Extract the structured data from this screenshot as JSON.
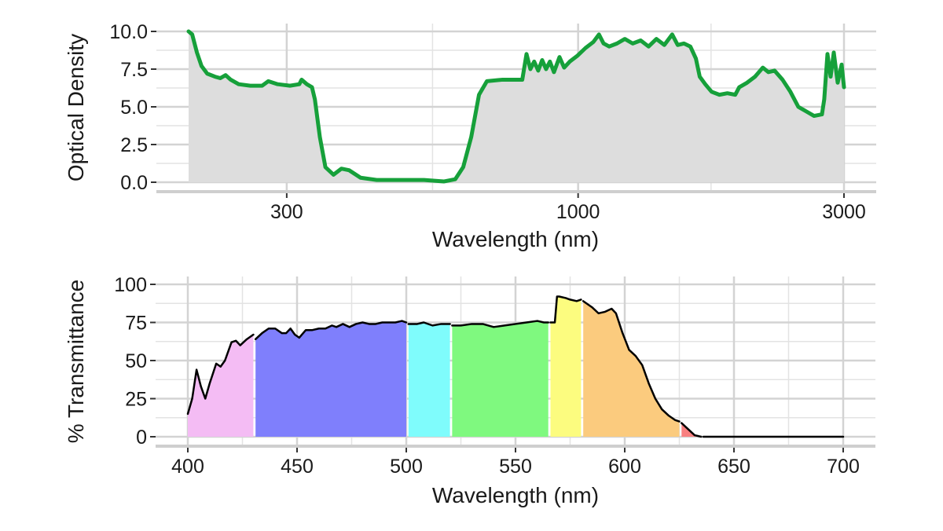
{
  "chart_data": [
    {
      "type": "area",
      "xlabel": "Wavelength (nm)",
      "ylabel": "Optical Density",
      "x_scale": "log10",
      "xlim": [
        200,
        3000
      ],
      "ylim": [
        0,
        10
      ],
      "x_ticks": [
        300,
        1000,
        3000
      ],
      "x_tick_labels": [
        "300",
        "1000",
        "3000"
      ],
      "x_minor_ticks": [
        548,
        1732
      ],
      "y_ticks": [
        0,
        2.5,
        5,
        7.5,
        10
      ],
      "y_tick_labels": [
        "0.0",
        "2.5",
        "5.0",
        "7.5",
        "10.0"
      ],
      "grid": true,
      "line_color": "#16a03a",
      "fill_color": "#dddddd",
      "x": [
        200,
        203,
        207,
        211,
        216,
        223,
        228,
        233,
        238,
        246,
        258,
        271,
        278,
        289,
        304,
        316,
        319,
        326,
        333,
        337,
        344,
        352,
        364,
        376,
        388,
        407,
        435,
        529,
        574,
        602,
        622,
        643,
        664,
        686,
        732,
        794,
        808,
        821,
        834,
        848,
        862,
        876,
        890,
        905,
        926,
        944,
        966,
        998,
        1031,
        1065,
        1090,
        1111,
        1137,
        1174,
        1213,
        1253,
        1295,
        1338,
        1382,
        1428,
        1475,
        1509,
        1549,
        1590,
        1627,
        1653,
        1691,
        1736,
        1793,
        1853,
        1914,
        1946,
        2010,
        2077,
        2145,
        2195,
        2252,
        2327,
        2404,
        2484,
        2566,
        2651,
        2739,
        2765,
        2802,
        2839,
        2876,
        2923,
        2971,
        3000
      ],
      "y": [
        10.0,
        9.8,
        8.6,
        7.7,
        7.2,
        7.0,
        6.9,
        7.1,
        6.8,
        6.5,
        6.4,
        6.4,
        6.7,
        6.5,
        6.4,
        6.5,
        6.8,
        6.5,
        6.3,
        5.5,
        3.0,
        1.0,
        0.5,
        0.9,
        0.8,
        0.3,
        0.15,
        0.15,
        0.05,
        0.2,
        1.0,
        3.0,
        5.8,
        6.7,
        6.8,
        6.8,
        8.5,
        7.5,
        8.0,
        7.4,
        8.1,
        7.5,
        8.0,
        7.3,
        8.3,
        7.6,
        8.0,
        8.4,
        8.9,
        9.3,
        9.8,
        9.2,
        9.0,
        9.2,
        9.5,
        9.2,
        9.4,
        9.0,
        9.5,
        9.1,
        9.8,
        9.1,
        9.2,
        9.0,
        8.2,
        7.0,
        6.5,
        6.0,
        5.8,
        5.9,
        5.8,
        6.3,
        6.6,
        7.0,
        7.6,
        7.3,
        7.4,
        6.8,
        6.0,
        5.0,
        4.7,
        4.4,
        4.5,
        5.5,
        8.5,
        7.0,
        8.6,
        6.6,
        7.8,
        6.3
      ]
    },
    {
      "type": "area",
      "xlabel": "Wavelength (nm)",
      "ylabel": "% Transmittance",
      "xlim": [
        400,
        700
      ],
      "ylim": [
        0,
        100
      ],
      "x_ticks": [
        400,
        450,
        500,
        550,
        600,
        650,
        700
      ],
      "x_tick_labels": [
        "400",
        "450",
        "500",
        "550",
        "600",
        "650",
        "700"
      ],
      "y_ticks": [
        0,
        25,
        50,
        75,
        100
      ],
      "y_tick_labels": [
        "0",
        "25",
        "50",
        "75",
        "100"
      ],
      "grid": true,
      "line_color": "#000000",
      "series": [
        {
          "color": "#f4bcf4",
          "x": [
            400,
            402,
            404,
            406,
            408,
            410,
            413,
            415,
            417,
            420,
            422,
            424,
            427,
            430
          ],
          "y": [
            15,
            25,
            44,
            33,
            25,
            35,
            48,
            46,
            50,
            62,
            63,
            60,
            64,
            67
          ]
        },
        {
          "color": "#7f7ffc",
          "x": [
            431,
            434,
            437,
            440,
            443,
            445,
            447,
            449,
            451,
            454,
            457,
            460,
            463,
            466,
            468,
            471,
            474,
            477,
            480,
            483,
            486,
            489,
            492,
            495,
            498,
            500
          ],
          "y": [
            64,
            68,
            71,
            71,
            68,
            68,
            71,
            67,
            65,
            70,
            70,
            71,
            71,
            73,
            72,
            74,
            72,
            74,
            75,
            74,
            74,
            75,
            75,
            75,
            76,
            75
          ]
        },
        {
          "color": "#7ffcfc",
          "x": [
            501,
            505,
            508,
            512,
            516,
            520
          ],
          "y": [
            74,
            74,
            75,
            73,
            74,
            74
          ]
        },
        {
          "color": "#7ff97f",
          "x": [
            521,
            525,
            530,
            535,
            540,
            545,
            550,
            555,
            560,
            563,
            565
          ],
          "y": [
            73,
            73,
            74,
            74,
            72,
            73,
            74,
            75,
            76,
            75,
            75
          ]
        },
        {
          "color": "#fcfc7f",
          "x": [
            566,
            568,
            569,
            570,
            573,
            575,
            578,
            580
          ],
          "y": [
            75,
            75,
            92,
            92,
            91,
            90,
            89,
            90
          ]
        },
        {
          "color": "#fbcb7e",
          "x": [
            581,
            585,
            588,
            591,
            594,
            596,
            599,
            602,
            605,
            608,
            611,
            614,
            617,
            620,
            623,
            625
          ],
          "y": [
            89,
            85,
            81,
            82,
            84,
            81,
            68,
            57,
            53,
            47,
            35,
            25,
            18,
            14,
            11,
            10
          ]
        },
        {
          "color": "#f88080",
          "x": [
            626,
            629,
            632,
            635
          ],
          "y": [
            9,
            5,
            1,
            0
          ]
        },
        {
          "color": "none",
          "x": [
            636,
            700
          ],
          "y": [
            0,
            0
          ]
        }
      ]
    }
  ]
}
